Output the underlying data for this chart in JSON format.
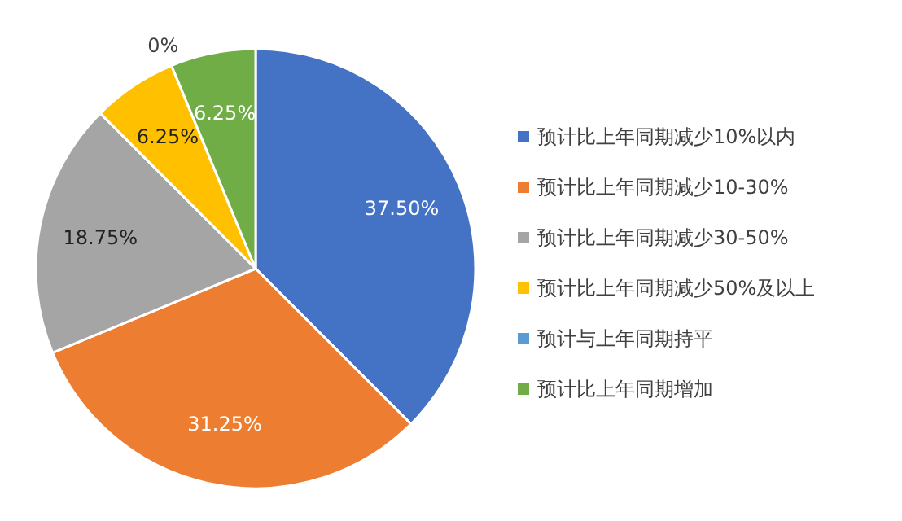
{
  "chart_data": {
    "type": "pie",
    "categories": [
      "预计比上年同期减少10%以内",
      "预计比上年同期减少10-30%",
      "预计比上年同期减少30-50%",
      "预计比上年同期减少50%及以上",
      "预计与上年同期持平",
      "预计比上年同期增加"
    ],
    "values": [
      37.5,
      31.25,
      18.75,
      6.25,
      0,
      6.25
    ],
    "value_labels": [
      "37.50%",
      "31.25%",
      "18.75%",
      "6.25%",
      "0%",
      "6.25%"
    ],
    "colors": [
      "#4472c4",
      "#ed7d31",
      "#a5a5a5",
      "#ffc000",
      "#5b9bd5",
      "#70ad47"
    ],
    "legend": "right"
  }
}
